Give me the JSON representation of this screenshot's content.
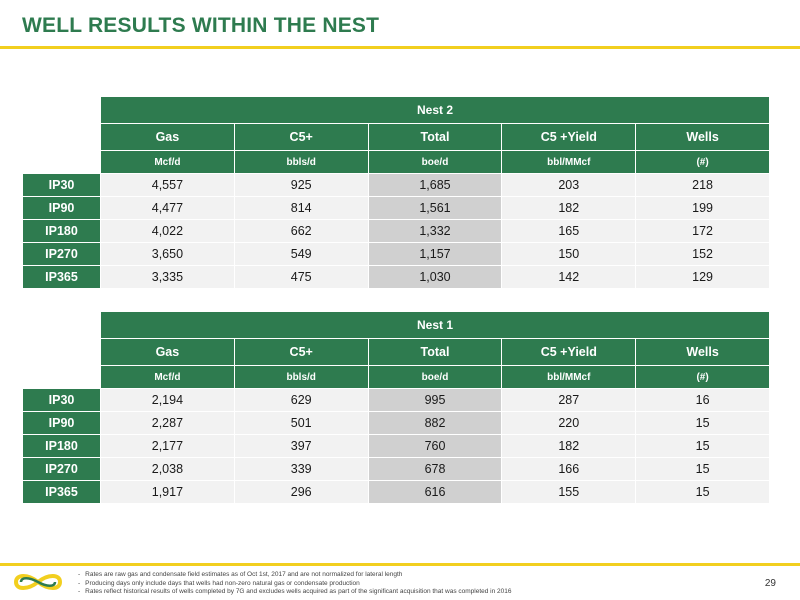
{
  "title": "WELL RESULTS WITHIN THE NEST",
  "columns": {
    "headers": [
      "Gas",
      "C5+",
      "Total",
      "C5 +Yield",
      "Wells"
    ],
    "units": [
      "Mcf/d",
      "bbls/d",
      "boe/d",
      "bbl/MMcf",
      "(#)"
    ]
  },
  "tables": [
    {
      "name": "Nest 2",
      "rows": [
        {
          "label": "IP30",
          "values": [
            "4,557",
            "925",
            "1,685",
            "203",
            "218"
          ]
        },
        {
          "label": "IP90",
          "values": [
            "4,477",
            "814",
            "1,561",
            "182",
            "199"
          ]
        },
        {
          "label": "IP180",
          "values": [
            "4,022",
            "662",
            "1,332",
            "165",
            "172"
          ]
        },
        {
          "label": "IP270",
          "values": [
            "3,650",
            "549",
            "1,157",
            "150",
            "152"
          ]
        },
        {
          "label": "IP365",
          "values": [
            "3,335",
            "475",
            "1,030",
            "142",
            "129"
          ]
        }
      ]
    },
    {
      "name": "Nest 1",
      "rows": [
        {
          "label": "IP30",
          "values": [
            "2,194",
            "629",
            "995",
            "287",
            "16"
          ]
        },
        {
          "label": "IP90",
          "values": [
            "2,287",
            "501",
            "882",
            "220",
            "15"
          ]
        },
        {
          "label": "IP180",
          "values": [
            "2,177",
            "397",
            "760",
            "182",
            "15"
          ]
        },
        {
          "label": "IP270",
          "values": [
            "2,038",
            "339",
            "678",
            "166",
            "15"
          ]
        },
        {
          "label": "IP365",
          "values": [
            "1,917",
            "296",
            "616",
            "155",
            "15"
          ]
        }
      ]
    }
  ],
  "footnotes": [
    "Rates are raw gas and condensate field estimates as of Oct 1st, 2017 and are not normalized for lateral length",
    "Producing days only include days that wells had non-zero natural gas or condensate production",
    "Rates reflect historical results of wells completed by 7G and excludes wells acquired as part of the significant acquisition that was completed in 2016"
  ],
  "page_number": "29",
  "colors": {
    "brand_green": "#2e7b4f",
    "accent_yellow": "#f2cf1f",
    "cell_bg": "#f2f2f2",
    "total_bg": "#d0d0d0"
  },
  "logo_icon": "company-logo-icon"
}
